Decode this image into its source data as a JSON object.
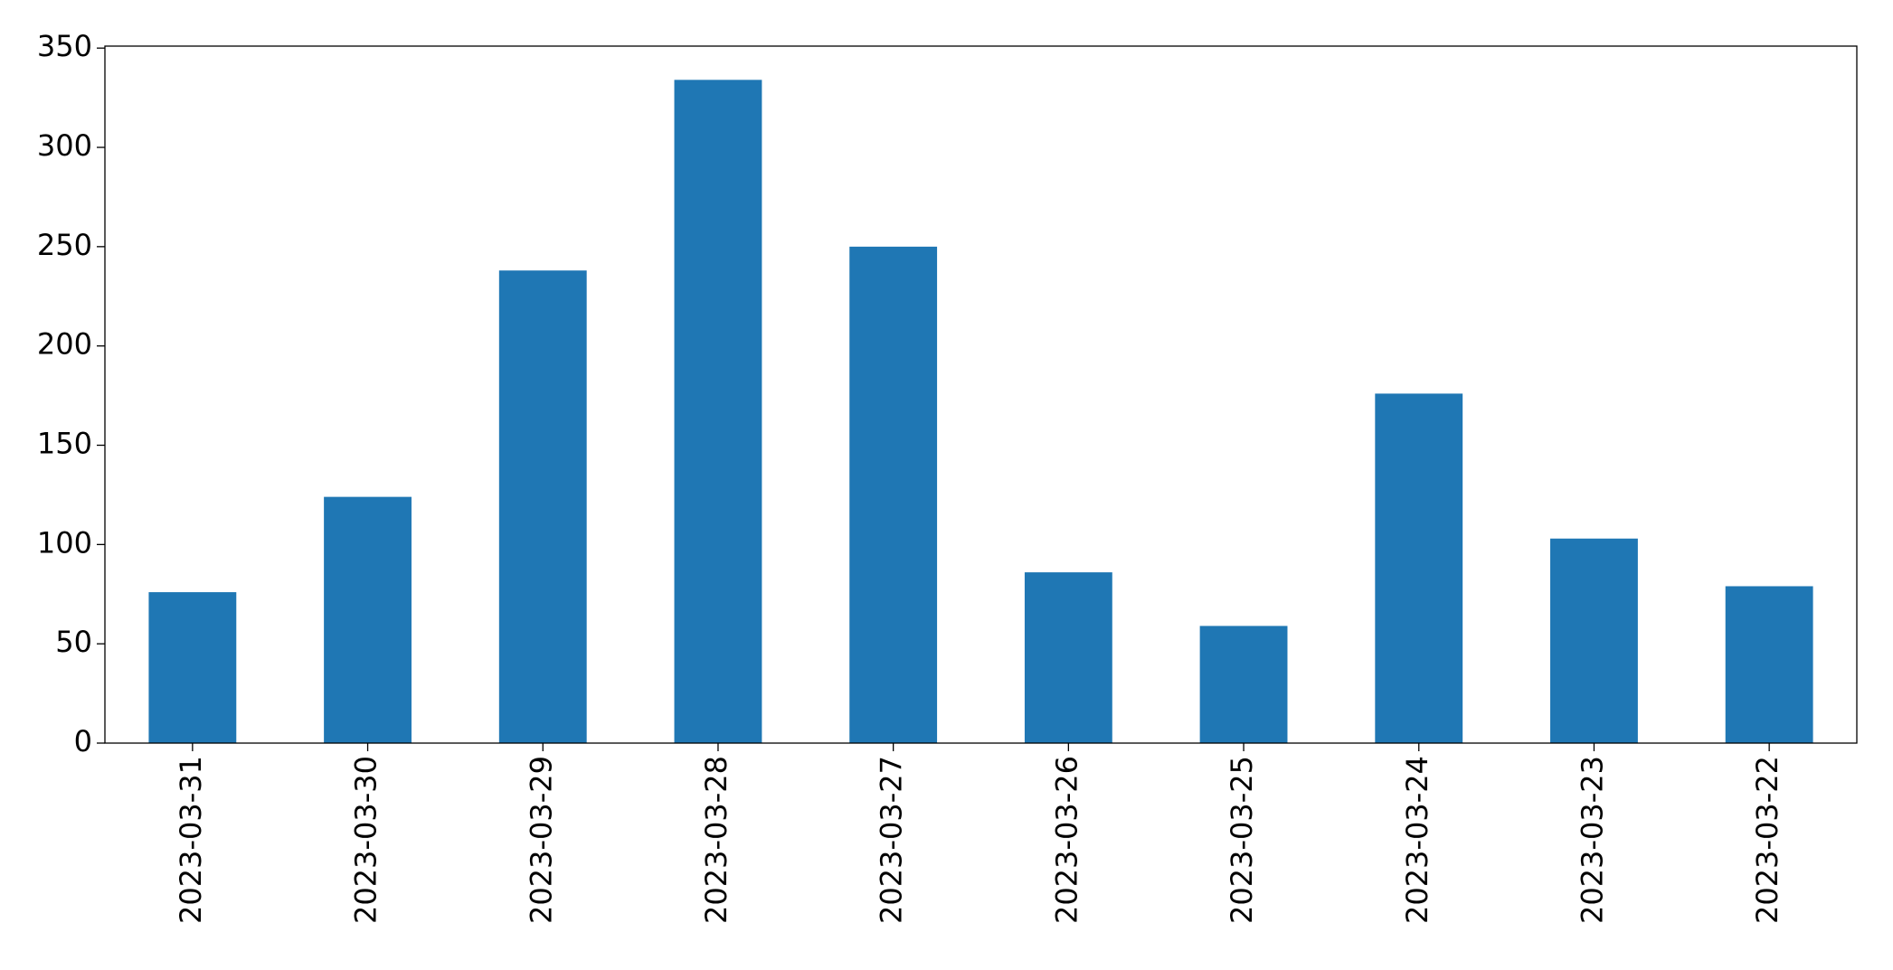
{
  "chart_data": {
    "type": "bar",
    "categories": [
      "2023-03-31",
      "2023-03-30",
      "2023-03-29",
      "2023-03-28",
      "2023-03-27",
      "2023-03-26",
      "2023-03-25",
      "2023-03-24",
      "2023-03-23",
      "2023-03-22"
    ],
    "values": [
      76,
      124,
      238,
      334,
      250,
      86,
      59,
      176,
      103,
      79
    ],
    "color": "#1f77b4",
    "ylim": [
      0,
      351
    ],
    "yticks": [
      0,
      50,
      100,
      150,
      200,
      250,
      300,
      350
    ],
    "grid": false
  }
}
